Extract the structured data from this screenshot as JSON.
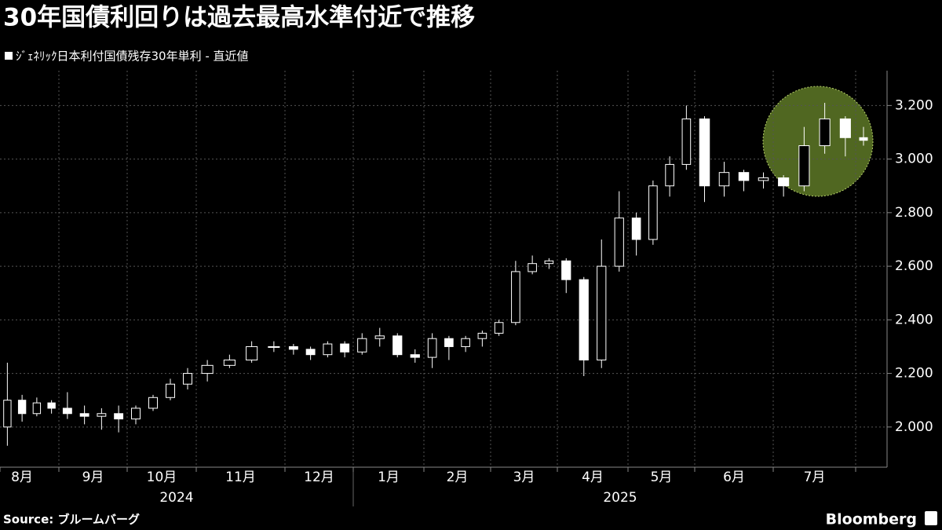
{
  "chart_data": {
    "type": "candlestick",
    "title": "30年国債利回りは過去最高水準付近で推移",
    "subtitle": "ｼﾞｪﾈﾘｯｸ日本利付国債残存30年単利 - 直近値",
    "source": "Source: ブルームバーグ",
    "brand": "Bloomberg",
    "categories": [
      "8月",
      "9月",
      "10月",
      "11月",
      "12月",
      "1月",
      "2月",
      "3月",
      "4月",
      "5月",
      "6月",
      "7月",
      null
    ],
    "years": [
      "2024",
      "2025"
    ],
    "color": "#ffffff",
    "ohlc": [
      [
        [
          2.0,
          2.24,
          1.93,
          2.1
        ],
        [
          2.1,
          2.12,
          2.02,
          2.05
        ],
        [
          2.05,
          2.11,
          2.04,
          2.09
        ],
        [
          2.09,
          2.1,
          2.05,
          2.07
        ]
      ],
      [
        [
          2.07,
          2.13,
          2.03,
          2.05
        ],
        [
          2.05,
          2.08,
          2.01,
          2.04
        ],
        [
          2.04,
          2.07,
          1.99,
          2.05
        ],
        [
          2.05,
          2.08,
          1.98,
          2.03
        ]
      ],
      [
        [
          2.03,
          2.08,
          2.01,
          2.07
        ],
        [
          2.07,
          2.12,
          2.06,
          2.11
        ],
        [
          2.11,
          2.18,
          2.1,
          2.16
        ],
        [
          2.16,
          2.22,
          2.14,
          2.2
        ]
      ],
      [
        [
          2.2,
          2.25,
          2.17,
          2.23
        ],
        [
          2.23,
          2.27,
          2.22,
          2.25
        ],
        [
          2.25,
          2.32,
          2.24,
          2.3
        ],
        [
          2.3,
          2.32,
          2.28,
          2.3
        ]
      ],
      [
        [
          2.3,
          2.31,
          2.27,
          2.29
        ],
        [
          2.29,
          2.3,
          2.25,
          2.27
        ],
        [
          2.27,
          2.32,
          2.26,
          2.31
        ],
        [
          2.31,
          2.32,
          2.26,
          2.28
        ]
      ],
      [
        [
          2.28,
          2.35,
          2.27,
          2.33
        ],
        [
          2.33,
          2.37,
          2.3,
          2.34
        ],
        [
          2.34,
          2.35,
          2.26,
          2.27
        ],
        [
          2.27,
          2.29,
          2.24,
          2.26
        ]
      ],
      [
        [
          2.26,
          2.35,
          2.22,
          2.33
        ],
        [
          2.33,
          2.34,
          2.25,
          2.3
        ],
        [
          2.3,
          2.34,
          2.28,
          2.33
        ],
        [
          2.33,
          2.36,
          2.3,
          2.35
        ]
      ],
      [
        [
          2.35,
          2.4,
          2.34,
          2.39
        ],
        [
          2.39,
          2.62,
          2.38,
          2.58
        ],
        [
          2.58,
          2.64,
          2.57,
          2.61
        ],
        [
          2.61,
          2.63,
          2.59,
          2.62
        ]
      ],
      [
        [
          2.62,
          2.63,
          2.5,
          2.55
        ],
        [
          2.55,
          2.56,
          2.19,
          2.25
        ],
        [
          2.25,
          2.7,
          2.22,
          2.6
        ],
        [
          2.6,
          2.88,
          2.58,
          2.78
        ]
      ],
      [
        [
          2.78,
          2.8,
          2.64,
          2.7
        ],
        [
          2.7,
          2.92,
          2.68,
          2.9
        ],
        [
          2.9,
          3.01,
          2.86,
          2.98
        ],
        [
          2.98,
          3.2,
          2.96,
          3.15
        ]
      ],
      [
        [
          3.15,
          3.16,
          2.84,
          2.9
        ],
        [
          2.9,
          2.99,
          2.86,
          2.95
        ],
        [
          2.95,
          2.96,
          2.88,
          2.92
        ],
        [
          2.92,
          2.95,
          2.89,
          2.93
        ]
      ],
      [
        [
          2.93,
          2.94,
          2.86,
          2.9
        ],
        [
          2.9,
          3.12,
          2.88,
          3.05
        ],
        [
          3.05,
          3.21,
          3.02,
          3.15
        ],
        [
          3.15,
          3.16,
          3.01,
          3.08
        ]
      ],
      [
        [
          3.08,
          3.12,
          3.05,
          3.07
        ]
      ]
    ],
    "ylim": [
      1.85,
      3.33
    ],
    "yticks": [
      {
        "value": 2.0,
        "label": "2.000"
      },
      {
        "value": 2.2,
        "label": "2.200"
      },
      {
        "value": 2.4,
        "label": "2.400"
      },
      {
        "value": 2.6,
        "label": "2.600"
      },
      {
        "value": 2.8,
        "label": "2.800"
      },
      {
        "value": 3.0,
        "label": "3.000"
      },
      {
        "value": 3.2,
        "label": "3.200"
      }
    ],
    "grid": true
  }
}
